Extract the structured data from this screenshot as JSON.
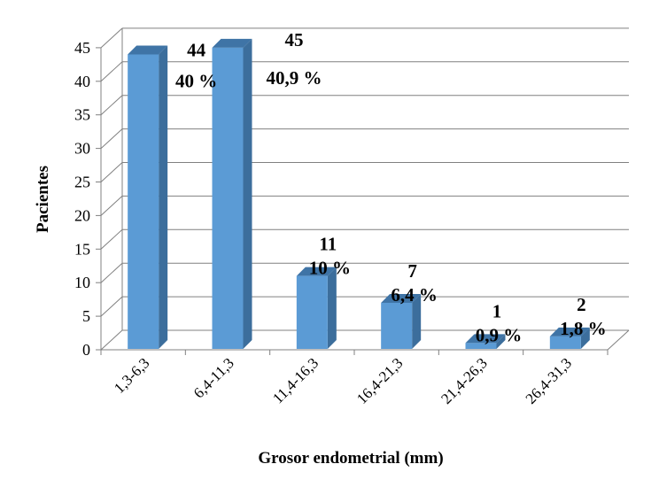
{
  "chart_data": {
    "type": "bar",
    "title": "",
    "xlabel": "Grosor endometrial (mm)",
    "ylabel": "Pacientes",
    "ylim": [
      0,
      45
    ],
    "yticks": [
      "0",
      "5",
      "10",
      "15",
      "20",
      "25",
      "30",
      "35",
      "40",
      "45"
    ],
    "categories": [
      "1,3-6,3",
      "6,4-11,3",
      "11,4-16,3",
      "16,4-21,3",
      "21,4-26,3",
      "26,4-31,3"
    ],
    "values": [
      44,
      45,
      11,
      7,
      1,
      2
    ],
    "value_labels": [
      "44",
      "45",
      "11",
      "7",
      "1",
      "2"
    ],
    "percent_labels": [
      "40 %",
      "40,9 %",
      "10 %",
      "6,4 %",
      "0,9 %",
      "1,8 %"
    ],
    "grid": true,
    "style": "3d-bar",
    "colors": {
      "bar_front": "#5B9BD5",
      "bar_side": "#3C6E9C",
      "bar_top": "#3F74A6",
      "grid": "#808080"
    }
  }
}
